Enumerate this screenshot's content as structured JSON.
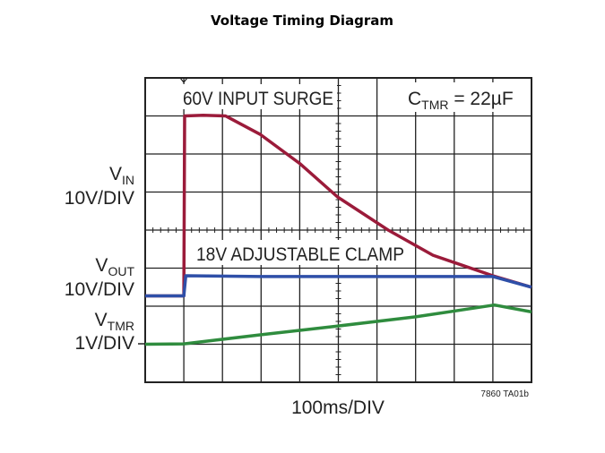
{
  "title": "Voltage Timing Diagram",
  "chart_data": {
    "type": "line",
    "title": "Voltage Timing Diagram",
    "xlabel": "100ms/DIV",
    "xlim": [
      0,
      1000
    ],
    "ylim_divisions": [
      0,
      8
    ],
    "grid": true,
    "x_divisions": 10,
    "y_divisions": 8,
    "annotations": {
      "surge": "60V INPUT SURGE",
      "ctmr_main": "C",
      "ctmr_sub": "TMR",
      "ctmr_value": " = 22µF",
      "clamp": "18V ADJUSTABLE CLAMP",
      "figure_id": "7860 TA01b"
    },
    "channel_labels": [
      {
        "main": "V",
        "sub": "IN",
        "scale": "10V/DIV"
      },
      {
        "main": "V",
        "sub": "OUT",
        "scale": "10V/DIV"
      },
      {
        "main": "V",
        "sub": "TMR",
        "scale": "1V/DIV"
      }
    ],
    "series": [
      {
        "name": "VIN",
        "color": "#9b1b3a",
        "x": [
          0,
          100,
          102,
          150,
          208,
          297,
          400,
          498,
          629,
          745,
          900,
          1000
        ],
        "y": [
          2.27,
          2.27,
          7.0,
          7.02,
          7.0,
          6.52,
          5.75,
          4.87,
          4.0,
          3.34,
          2.8,
          2.5
        ]
      },
      {
        "name": "VOUT",
        "color": "#2e4fa8",
        "x": [
          0,
          100,
          105,
          300,
          500,
          700,
          900,
          1000
        ],
        "y": [
          2.27,
          2.27,
          2.8,
          2.78,
          2.78,
          2.78,
          2.78,
          2.5
        ]
      },
      {
        "name": "VTMR",
        "color": "#2f8c3e",
        "x": [
          0,
          100,
          300,
          500,
          700,
          904,
          1000
        ],
        "y": [
          1.0,
          1.01,
          1.25,
          1.48,
          1.72,
          2.03,
          1.85
        ]
      }
    ]
  }
}
